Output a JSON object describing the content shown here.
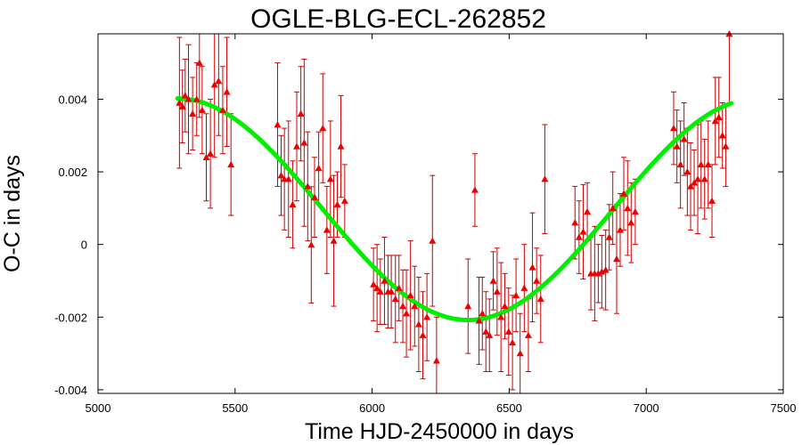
{
  "chart_data": {
    "type": "scatter",
    "title": "OGLE-BLG-ECL-262852",
    "xlabel": "Time HJD-2450000 in days",
    "ylabel": "O-C in days",
    "xlim": [
      5000,
      7500
    ],
    "ylim": [
      -0.0041,
      0.0058
    ],
    "x_ticks": [
      5000,
      5500,
      6000,
      6500,
      7000,
      7500
    ],
    "x_tick_labels": [
      "5000",
      "5500",
      "6000",
      "6500",
      "7000",
      "7500"
    ],
    "y_ticks": [
      -0.004,
      -0.002,
      0,
      0.002,
      0.004
    ],
    "y_tick_labels": [
      "-0.004",
      "-0.002",
      "0",
      "0.002",
      "0.004"
    ],
    "grid": false,
    "colors": {
      "points": "#ee0000",
      "errorbars": "#cc0000",
      "fit": "#00ee00"
    },
    "series": [
      {
        "type": "scatter-errorbars",
        "marker": "triangle",
        "points": [
          [
            5297,
            0.0039,
            0.0018
          ],
          [
            5308,
            0.0038,
            0.001
          ],
          [
            5318,
            0.0041,
            0.001
          ],
          [
            5330,
            0.004,
            0.0015
          ],
          [
            5345,
            0.0036,
            0.001
          ],
          [
            5360,
            0.004,
            0.001
          ],
          [
            5370,
            0.005,
            0.0015
          ],
          [
            5380,
            0.0037,
            0.0012
          ],
          [
            5395,
            0.0024,
            0.0012
          ],
          [
            5410,
            0.0025,
            0.0015
          ],
          [
            5425,
            0.0044,
            0.002
          ],
          [
            5440,
            0.0045,
            0.0015
          ],
          [
            5455,
            0.0037,
            0.0012
          ],
          [
            5470,
            0.0042,
            0.0015
          ],
          [
            5485,
            0.0022,
            0.0014
          ],
          [
            5655,
            0.0033,
            0.0017
          ],
          [
            5668,
            0.0019,
            0.0011
          ],
          [
            5680,
            0.0018,
            0.0014
          ],
          [
            5695,
            0.0018,
            0.0016
          ],
          [
            5710,
            0.0011,
            0.0012
          ],
          [
            5725,
            0.0027,
            0.0015
          ],
          [
            5740,
            0.0036,
            0.0013
          ],
          [
            5752,
            0.0028,
            0.0023
          ],
          [
            5765,
            0.0016,
            0.0015
          ],
          [
            5778,
            -1e-05,
            0.0016
          ],
          [
            5790,
            0.0013,
            0.0011
          ],
          [
            5805,
            0.0021,
            0.001
          ],
          [
            5820,
            0.0032,
            0.0015
          ],
          [
            5835,
            0.0004,
            0.0012
          ],
          [
            5848,
            0.0018,
            0.0016
          ],
          [
            5860,
            0.0001,
            0.0018
          ],
          [
            5873,
            0.0011,
            0.0009
          ],
          [
            5886,
            0.0027,
            0.0014
          ],
          [
            5900,
            0.0012,
            0.001
          ],
          [
            6005,
            -0.0011,
            0.001
          ],
          [
            6018,
            -0.0012,
            0.0012
          ],
          [
            6030,
            -0.0013,
            0.0009
          ],
          [
            6045,
            -0.001,
            0.0012
          ],
          [
            6058,
            -0.0013,
            0.001
          ],
          [
            6070,
            -0.0013,
            0.001
          ],
          [
            6085,
            -0.0015,
            0.0012
          ],
          [
            6098,
            -0.0012,
            0.0009
          ],
          [
            6112,
            -0.0017,
            0.001
          ],
          [
            6125,
            -0.0019,
            0.0012
          ],
          [
            6140,
            -0.0014,
            0.0015
          ],
          [
            6155,
            -0.0017,
            0.0011
          ],
          [
            6170,
            -0.0022,
            0.0013
          ],
          [
            6185,
            -0.0025,
            0.0012
          ],
          [
            6200,
            -0.002,
            0.0012
          ],
          [
            6220,
            0.0001,
            0.0018
          ],
          [
            6235,
            -0.0032,
            0.0012
          ],
          [
            6350,
            -0.0017,
            0.0013
          ],
          [
            6375,
            0.0015,
            0.001
          ],
          [
            6390,
            -0.0021,
            0.0012
          ],
          [
            6402,
            -0.0019,
            0.001
          ],
          [
            6415,
            -0.0024,
            0.0011
          ],
          [
            6428,
            -0.0025,
            0.001
          ],
          [
            6442,
            -0.001,
            0.0008
          ],
          [
            6456,
            -0.0013,
            0.0012
          ],
          [
            6470,
            -0.002,
            0.0015
          ],
          [
            6484,
            -0.0017,
            0.0009
          ],
          [
            6498,
            -0.0024,
            0.0012
          ],
          [
            6512,
            -0.0027,
            0.0013
          ],
          [
            6525,
            -0.0014,
            0.001
          ],
          [
            6540,
            -0.003,
            0.0011
          ],
          [
            6555,
            -0.0012,
            0.0012
          ],
          [
            6570,
            -0.0025,
            0.001
          ],
          [
            6585,
            -0.00063,
            0.0015
          ],
          [
            6600,
            -0.001,
            0.0009
          ],
          [
            6615,
            -0.0015,
            0.0012
          ],
          [
            6630,
            0.0018,
            0.0015
          ],
          [
            6740,
            0.0006,
            0.001
          ],
          [
            6755,
            0.0002,
            0.001
          ],
          [
            6770,
            0.00035,
            0.0013
          ],
          [
            6785,
            0.0009,
            0.0008
          ],
          [
            6798,
            -0.0008,
            0.001
          ],
          [
            6812,
            -0.0008,
            0.0013
          ],
          [
            6825,
            -0.0008,
            0.0008
          ],
          [
            6838,
            -0.00075,
            0.001
          ],
          [
            6852,
            -0.0007,
            0.0011
          ],
          [
            6865,
            0.0002,
            0.0009
          ],
          [
            6878,
            0.001,
            0.001
          ],
          [
            6892,
            -0.0004,
            0.0015
          ],
          [
            6905,
            0.0004,
            0.001
          ],
          [
            6918,
            0.0014,
            0.001
          ],
          [
            6932,
            0.001,
            0.0013
          ],
          [
            6945,
            0.0006,
            0.0011
          ],
          [
            6960,
            0.0009,
            0.0009
          ],
          [
            7100,
            0.0032,
            0.001
          ],
          [
            7112,
            0.0027,
            0.001
          ],
          [
            7125,
            0.0022,
            0.0012
          ],
          [
            7138,
            0.0029,
            0.001
          ],
          [
            7150,
            0.002,
            0.0012
          ],
          [
            7162,
            0.0016,
            0.0012
          ],
          [
            7175,
            0.0017,
            0.0009
          ],
          [
            7188,
            0.0018,
            0.0015
          ],
          [
            7200,
            0.0022,
            0.0012
          ],
          [
            7213,
            0.0018,
            0.0011
          ],
          [
            7226,
            0.0022,
            0.0012
          ],
          [
            7240,
            0.0012,
            0.001
          ],
          [
            7252,
            0.0034,
            0.0012
          ],
          [
            7265,
            0.0035,
            0.0011
          ],
          [
            7278,
            0.003,
            0.0009
          ],
          [
            7290,
            0.0027,
            0.0011
          ],
          [
            7303,
            0.0058,
            0.0019
          ]
        ]
      },
      {
        "type": "line",
        "fit": {
          "center": 5815,
          "amplitude": 0.00305,
          "offset": 0.00097,
          "period": 2120,
          "phase_anchor": 5290
        },
        "x_range": [
          5290,
          7310
        ]
      }
    ]
  }
}
